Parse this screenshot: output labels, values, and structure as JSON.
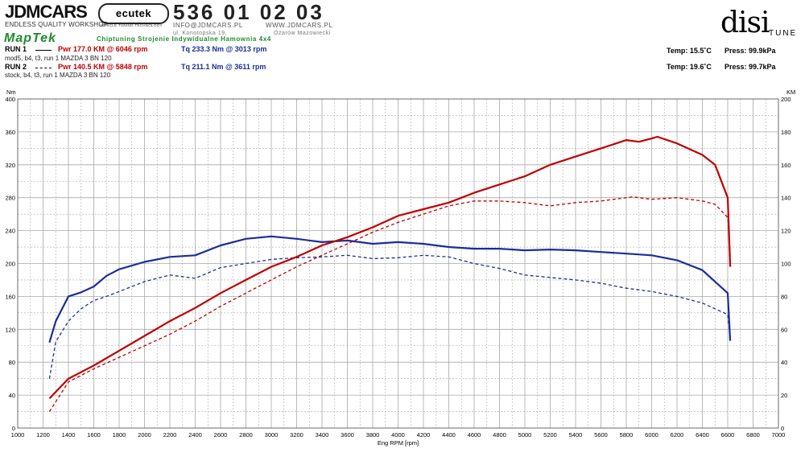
{
  "header": {
    "jdm_logo": "JDMCARS",
    "jdm_tagline": "ENDLESS QUALITY WORKSHOP",
    "ecutek_logo": "ecutek",
    "ecutek_tagline": "VEHICLE TUNING TECHNOLOGY",
    "phone": "536 01 02 03",
    "email": "INFO@JDMCARS.PL",
    "website": "WWW.JDMCARS.PL",
    "address": "ul. Konotopska 19,",
    "city": "Ożarów Mazowiecki",
    "maptek_logo": "MapTek",
    "maptek_text": "Chiptuning Strojenie Indywidualne Hamownia 4x4",
    "disi_logo": "disi",
    "disi_tune": "TUNE"
  },
  "runs": [
    {
      "label": "RUN 1",
      "pwr": "Pwr  177.0 KM @ 6046 rpm",
      "tq": "Tq 233.3 Nm @ 3013 rpm",
      "desc": "mod5, b4, t3, run 1 MAZDA 3 BN 120",
      "temp": "Temp: 15.5˚C",
      "press": "Press: 99.9kPa"
    },
    {
      "label": "RUN 2",
      "pwr": "Pwr  140.5 KM @ 5848 rpm",
      "tq": "Tq 211.1 Nm @ 3611 rpm",
      "desc": "stock, b4, t3, run 1 MAZDA 3 BN 120",
      "temp": "Temp: 19.6˚C",
      "press": "Press: 99.7kPa"
    }
  ],
  "colors": {
    "power": "#c00000",
    "torque": "#1a2d9a",
    "grid": "#a8a8a8"
  },
  "chart_data": {
    "type": "line",
    "xlabel": "Eng RPM [rpm]",
    "ylabel_left": "Nm",
    "ylabel_right": "KM",
    "xlim": [
      1000,
      7000
    ],
    "ylim_left": [
      0,
      400
    ],
    "ylim_right": [
      0,
      200
    ],
    "x_ticks": [
      "1000",
      "1200",
      "1400",
      "1600",
      "1800",
      "2000",
      "2200",
      "2400",
      "2600",
      "2800",
      "3000",
      "3200",
      "3400",
      "3600",
      "3800",
      "4000",
      "4200",
      "4400",
      "4600",
      "4800",
      "5000",
      "5200",
      "5400",
      "5600",
      "5800",
      "6000",
      "6200",
      "6400",
      "6600",
      "6800",
      "7000"
    ],
    "y_ticks_left": [
      "0",
      "40",
      "80",
      "120",
      "160",
      "200",
      "240",
      "280",
      "320",
      "360",
      "400"
    ],
    "y_ticks_right": [
      "0",
      "20",
      "40",
      "60",
      "80",
      "100",
      "120",
      "140",
      "160",
      "180",
      "200"
    ],
    "grid": true,
    "series": [
      {
        "name": "RUN 1",
        "quantity": "torque",
        "axis": "left",
        "style": "solid",
        "x": [
          1250,
          1300,
          1400,
          1500,
          1600,
          1700,
          1800,
          2000,
          2200,
          2400,
          2600,
          2800,
          3000,
          3200,
          3400,
          3600,
          3800,
          4000,
          4200,
          4400,
          4600,
          4800,
          5000,
          5200,
          5400,
          5600,
          5800,
          6000,
          6200,
          6400,
          6600,
          6620
        ],
        "y": [
          104,
          130,
          160,
          165,
          172,
          185,
          193,
          202,
          208,
          210,
          222,
          230,
          233,
          230,
          226,
          228,
          224,
          226,
          224,
          220,
          218,
          218,
          216,
          217,
          216,
          214,
          212,
          210,
          204,
          192,
          164,
          106
        ]
      },
      {
        "name": "RUN 2",
        "quantity": "torque",
        "axis": "left",
        "style": "dashed",
        "x": [
          1250,
          1300,
          1400,
          1500,
          1600,
          1700,
          1800,
          2000,
          2200,
          2400,
          2600,
          2800,
          3000,
          3200,
          3400,
          3600,
          3800,
          4000,
          4200,
          4400,
          4600,
          4800,
          5000,
          5200,
          5400,
          5600,
          5800,
          6000,
          6200,
          6400,
          6600,
          6620
        ],
        "y": [
          60,
          105,
          130,
          145,
          155,
          160,
          166,
          178,
          186,
          182,
          195,
          200,
          205,
          207,
          208,
          210,
          206,
          207,
          210,
          208,
          200,
          194,
          186,
          183,
          180,
          176,
          170,
          166,
          160,
          152,
          138,
          108
        ]
      },
      {
        "name": "RUN 1",
        "quantity": "power",
        "axis": "right",
        "style": "solid",
        "x": [
          1250,
          1400,
          1600,
          1800,
          2000,
          2200,
          2400,
          2600,
          2800,
          3000,
          3200,
          3400,
          3600,
          3800,
          4000,
          4200,
          4400,
          4600,
          4800,
          5000,
          5200,
          5400,
          5600,
          5800,
          5900,
          6000,
          6046,
          6200,
          6400,
          6500,
          6600,
          6620
        ],
        "y": [
          18,
          30,
          38,
          47,
          56,
          65,
          73,
          82,
          90,
          98,
          104,
          111,
          116,
          122,
          129,
          133,
          137,
          143,
          148,
          153,
          160,
          165,
          170,
          175,
          174,
          176,
          177,
          173,
          166,
          160,
          140,
          98
        ]
      },
      {
        "name": "RUN 2",
        "quantity": "power",
        "axis": "right",
        "style": "dashed",
        "x": [
          1250,
          1400,
          1600,
          1800,
          2000,
          2200,
          2400,
          2600,
          2800,
          3000,
          3200,
          3400,
          3600,
          3800,
          4000,
          4200,
          4400,
          4600,
          4800,
          5000,
          5200,
          5400,
          5600,
          5848,
          6000,
          6200,
          6400,
          6500,
          6600,
          6620
        ],
        "y": [
          10,
          28,
          36,
          43,
          50,
          57,
          65,
          74,
          82,
          90,
          98,
          105,
          112,
          119,
          125,
          130,
          135,
          138,
          138,
          137,
          135,
          137,
          138,
          140.5,
          139,
          140,
          138,
          136,
          128,
          105
        ]
      }
    ]
  }
}
